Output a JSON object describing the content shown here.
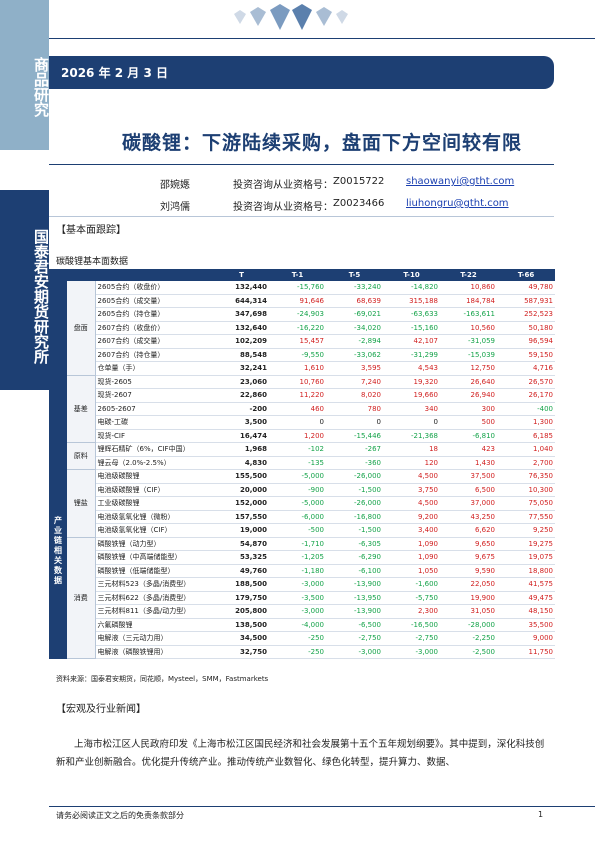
{
  "sidebar": {
    "top_text": "商品研究",
    "company_text": "国泰君安期货研究所"
  },
  "header": {
    "date": "2026 年 2 月 3 日"
  },
  "title": "碳酸锂：下游陆续采购，盘面下方空间较有限",
  "authors": [
    {
      "name": "邵婉嫕",
      "cert_label": "投资咨询从业资格号：",
      "cert_no": "Z0015722",
      "email": "shaowanyi@gtht.com"
    },
    {
      "name": "刘鸿儒",
      "cert_label": "投资咨询从业资格号：",
      "cert_no": "Z0023466",
      "email": "liuhongru@gtht.com"
    }
  ],
  "section1": {
    "heading": "【基本面跟踪】",
    "table_title": "碳酸锂基本面数据"
  },
  "table": {
    "headers": [
      "T",
      "T-1",
      "T-5",
      "T-10",
      "T-22",
      "T-66"
    ],
    "groups": [
      {
        "cat1": "",
        "subgroups": [
          {
            "cat2": "盘面",
            "rows": [
              {
                "name": "2605合约（收盘价）",
                "t": "132,440",
                "vals": [
                  "-15,760",
                  "-33,240",
                  "-14,820",
                  "10,860",
                  "49,780"
                ]
              },
              {
                "name": "2605合约（成交量）",
                "t": "644,314",
                "vals": [
                  "91,646",
                  "68,639",
                  "315,188",
                  "184,784",
                  "587,931"
                ]
              },
              {
                "name": "2605合约（持仓量）",
                "t": "347,698",
                "vals": [
                  "-24,903",
                  "-69,021",
                  "-63,633",
                  "-163,611",
                  "252,523"
                ]
              },
              {
                "name": "2607合约（收盘价）",
                "t": "132,640",
                "vals": [
                  "-16,220",
                  "-34,020",
                  "-15,160",
                  "10,560",
                  "50,180"
                ]
              },
              {
                "name": "2607合约（成交量）",
                "t": "102,209",
                "vals": [
                  "15,457",
                  "-2,894",
                  "42,107",
                  "-31,059",
                  "96,594"
                ]
              },
              {
                "name": "2607合约（持仓量）",
                "t": "88,548",
                "vals": [
                  "-9,550",
                  "-33,062",
                  "-31,299",
                  "-15,039",
                  "59,150"
                ]
              },
              {
                "name": "仓单量（手）",
                "t": "32,241",
                "vals": [
                  "1,610",
                  "3,595",
                  "4,543",
                  "12,750",
                  "4,716"
                ]
              }
            ]
          },
          {
            "cat2": "基差",
            "rows": [
              {
                "name": "现货-2605",
                "t": "23,060",
                "vals": [
                  "10,760",
                  "7,240",
                  "19,320",
                  "26,640",
                  "26,570"
                ]
              },
              {
                "name": "现货-2607",
                "t": "22,860",
                "vals": [
                  "11,220",
                  "8,020",
                  "19,660",
                  "26,940",
                  "26,170"
                ]
              },
              {
                "name": "2605-2607",
                "t": "-200",
                "vals": [
                  "460",
                  "780",
                  "340",
                  "300",
                  "-400"
                ]
              },
              {
                "name": "电碳-工碳",
                "t": "3,500",
                "vals": [
                  "0",
                  "0",
                  "0",
                  "500",
                  "1,300"
                ]
              },
              {
                "name": "现货-CIF",
                "t": "16,474",
                "vals": [
                  "1,200",
                  "-15,446",
                  "-21,368",
                  "-6,810",
                  "6,185"
                ]
              }
            ]
          }
        ]
      },
      {
        "cat1": "产业链相关数据",
        "subgroups": [
          {
            "cat2": "原料",
            "rows": [
              {
                "name": "锂辉石精矿（6%，CIF中国）",
                "t": "1,968",
                "vals": [
                  "-102",
                  "-267",
                  "18",
                  "423",
                  "1,040"
                ]
              },
              {
                "name": "锂云母（2.0%-2.5%）",
                "t": "4,830",
                "vals": [
                  "-135",
                  "-360",
                  "120",
                  "1,430",
                  "2,700"
                ]
              }
            ]
          },
          {
            "cat2": "锂盐",
            "rows": [
              {
                "name": "电池级碳酸锂",
                "t": "155,500",
                "vals": [
                  "-5,000",
                  "-26,000",
                  "4,500",
                  "37,500",
                  "76,350"
                ]
              },
              {
                "name": "电池级碳酸锂（CIF）",
                "t": "20,000",
                "vals": [
                  "-900",
                  "-1,500",
                  "3,750",
                  "6,500",
                  "10,300"
                ]
              },
              {
                "name": "工业级碳酸锂",
                "t": "152,000",
                "vals": [
                  "-5,000",
                  "-26,000",
                  "4,500",
                  "37,000",
                  "75,050"
                ]
              },
              {
                "name": "电池级氢氧化锂（微粉）",
                "t": "157,550",
                "vals": [
                  "-6,000",
                  "-16,800",
                  "9,200",
                  "43,250",
                  "77,550"
                ]
              },
              {
                "name": "电池级氢氧化锂（CIF）",
                "t": "19,000",
                "vals": [
                  "-500",
                  "-1,500",
                  "3,400",
                  "6,620",
                  "9,250"
                ]
              }
            ]
          },
          {
            "cat2": "消费",
            "rows": [
              {
                "name": "磷酸铁锂（动力型）",
                "t": "54,870",
                "vals": [
                  "-1,710",
                  "-6,305",
                  "1,090",
                  "9,650",
                  "19,275"
                ]
              },
              {
                "name": "磷酸铁锂（中高端储能型）",
                "t": "53,325",
                "vals": [
                  "-1,205",
                  "-6,290",
                  "1,090",
                  "9,675",
                  "19,075"
                ]
              },
              {
                "name": "磷酸铁锂（低端储能型）",
                "t": "49,760",
                "vals": [
                  "-1,180",
                  "-6,100",
                  "1,050",
                  "9,590",
                  "18,800"
                ]
              },
              {
                "name": "三元材料523（多晶/消费型）",
                "t": "188,500",
                "vals": [
                  "-3,000",
                  "-13,900",
                  "-1,600",
                  "22,050",
                  "41,575"
                ]
              },
              {
                "name": "三元材料622（多晶/消费型）",
                "t": "179,750",
                "vals": [
                  "-3,500",
                  "-13,950",
                  "-5,750",
                  "19,900",
                  "49,475"
                ]
              },
              {
                "name": "三元材料811（多晶/动力型）",
                "t": "205,800",
                "vals": [
                  "-3,000",
                  "-13,900",
                  "2,300",
                  "31,050",
                  "48,150"
                ]
              },
              {
                "name": "六氟磷酸锂",
                "t": "138,500",
                "vals": [
                  "-4,000",
                  "-6,500",
                  "-16,500",
                  "-28,000",
                  "35,500"
                ]
              },
              {
                "name": "电解液（三元动力用）",
                "t": "34,500",
                "vals": [
                  "-250",
                  "-2,750",
                  "-2,750",
                  "-2,250",
                  "9,000"
                ]
              },
              {
                "name": "电解液（磷酸铁锂用）",
                "t": "32,750",
                "vals": [
                  "-250",
                  "-3,000",
                  "-3,000",
                  "-2,500",
                  "11,750"
                ]
              }
            ]
          }
        ]
      }
    ]
  },
  "source_note": "资料来源：国泰君安期货，同花顺，Mysteel，SMM，Fastmarkets",
  "section2": {
    "heading": "【宏观及行业新闻】",
    "para": "上海市松江区人民政府印发《上海市松江区国民经济和社会发展第十五个五年规划纲要》。其中提到，深化科技创新和产业创新融合。优化提升传统产业。推动传统产业数智化、绿色化转型，提升算力、数据、"
  },
  "footer": {
    "disclaimer": "请务必阅读正文之后的免责条款部分",
    "page": "1"
  }
}
